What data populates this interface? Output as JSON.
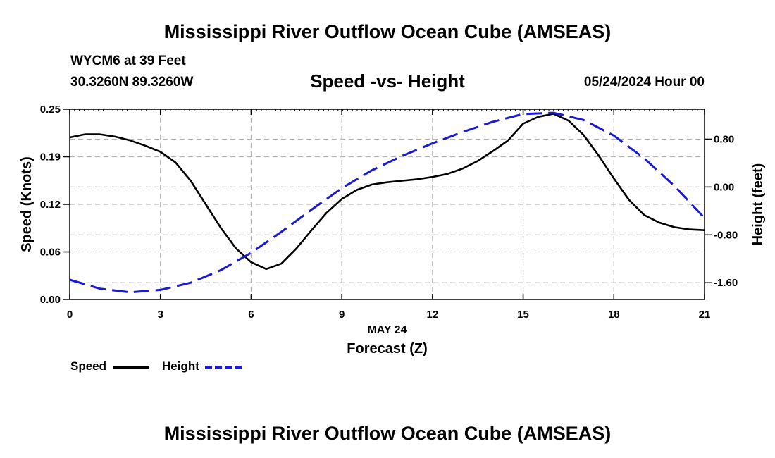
{
  "header": {
    "title": "Mississippi River Outflow Ocean Cube (AMSEAS)",
    "station": "WYCM6 at 39 Feet",
    "coords": "30.3260N  89.3260W",
    "subtitle": "Speed -vs- Height",
    "datetime": "05/24/2024 Hour 00"
  },
  "footer": {
    "title": "Mississippi River Outflow Ocean Cube (AMSEAS)"
  },
  "legend": {
    "speed_label": "Speed",
    "height_label": "Height"
  },
  "colors": {
    "speed": "#000000",
    "height": "#1a1ad6",
    "grid": "#b3b3b3"
  },
  "chart_data": {
    "type": "line",
    "title": "Speed -vs- Height",
    "xlabel": "Forecast (Z)",
    "xlabel_date": "MAY 24",
    "ylabel": "Speed (Knots)",
    "y2label": "Height (feet)",
    "xlim": [
      0,
      21
    ],
    "ylim": [
      0,
      0.25
    ],
    "y2lim": [
      -1.88,
      1.3
    ],
    "x_ticks": [
      "0",
      "3",
      "6",
      "9",
      "12",
      "15",
      "18",
      "21"
    ],
    "y_ticks": [
      "0.00",
      "0.06",
      "0.12",
      "0.19",
      "0.25"
    ],
    "y_tick_values": [
      0.0,
      0.0625,
      0.125,
      0.1875,
      0.25
    ],
    "y2_ticks": [
      "0.80",
      "0.00",
      "-0.80",
      "-1.60"
    ],
    "y2_tick_values": [
      0.8,
      0.0,
      -0.8,
      -1.6
    ],
    "grid": true,
    "series": [
      {
        "name": "Speed",
        "axis": "left",
        "x": [
          0,
          0.5,
          1,
          1.5,
          2,
          2.5,
          3,
          3.5,
          4,
          4.5,
          5,
          5.5,
          6,
          6.5,
          7,
          7.5,
          8,
          8.5,
          9,
          9.5,
          10,
          10.5,
          11,
          11.5,
          12,
          12.5,
          13,
          13.5,
          14,
          14.5,
          15,
          15.5,
          16,
          16.5,
          17,
          17.5,
          18,
          18.5,
          19,
          19.5,
          20,
          20.5,
          21
        ],
        "values": [
          0.213,
          0.217,
          0.217,
          0.214,
          0.209,
          0.202,
          0.194,
          0.18,
          0.156,
          0.125,
          0.094,
          0.067,
          0.049,
          0.04,
          0.047,
          0.067,
          0.091,
          0.114,
          0.132,
          0.144,
          0.151,
          0.154,
          0.156,
          0.158,
          0.161,
          0.165,
          0.172,
          0.182,
          0.195,
          0.209,
          0.231,
          0.24,
          0.244,
          0.235,
          0.216,
          0.189,
          0.159,
          0.131,
          0.111,
          0.101,
          0.095,
          0.092,
          0.091
        ]
      },
      {
        "name": "Height",
        "axis": "right",
        "x": [
          0,
          1,
          2,
          3,
          4,
          5,
          6,
          7,
          8,
          9,
          10,
          11,
          12,
          13,
          14,
          15,
          16,
          17,
          18,
          19,
          20,
          21
        ],
        "values": [
          -1.55,
          -1.7,
          -1.76,
          -1.72,
          -1.6,
          -1.39,
          -1.1,
          -0.75,
          -0.38,
          -0.02,
          0.28,
          0.52,
          0.73,
          0.92,
          1.09,
          1.22,
          1.24,
          1.12,
          0.86,
          0.48,
          0.02,
          -0.52
        ]
      }
    ]
  }
}
